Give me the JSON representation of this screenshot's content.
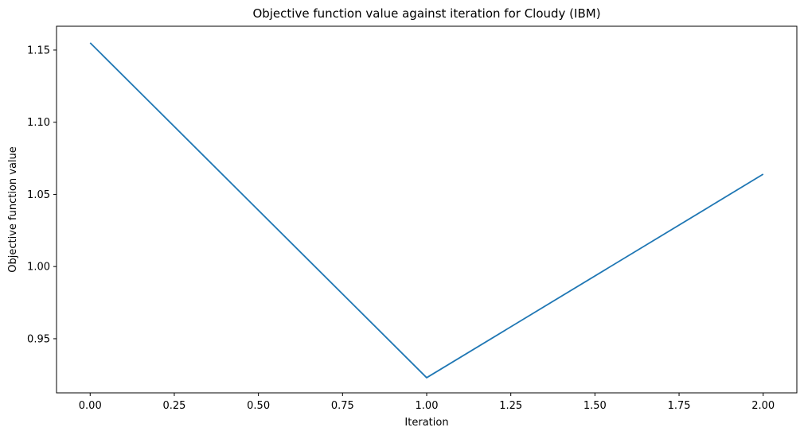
{
  "chart_data": {
    "type": "line",
    "title": "Objective function value against iteration for Cloudy (IBM)",
    "xlabel": "Iteration",
    "ylabel": "Objective function value",
    "xlim": [
      -0.1,
      2.1
    ],
    "ylim": [
      0.9125,
      1.1665
    ],
    "x_ticks": [
      0.0,
      0.25,
      0.5,
      0.75,
      1.0,
      1.25,
      1.5,
      1.75,
      2.0
    ],
    "x_tick_labels": [
      "0.00",
      "0.25",
      "0.50",
      "0.75",
      "1.00",
      "1.25",
      "1.50",
      "1.75",
      "2.00"
    ],
    "y_ticks": [
      0.95,
      1.0,
      1.05,
      1.1,
      1.15
    ],
    "y_tick_labels": [
      "0.95",
      "1.00",
      "1.05",
      "1.10",
      "1.15"
    ],
    "grid": false,
    "legend": "none",
    "series": [
      {
        "name": "Objective function value",
        "color": "#1f77b4",
        "x": [
          0,
          1,
          2
        ],
        "y": [
          1.155,
          0.923,
          1.064
        ]
      }
    ]
  }
}
